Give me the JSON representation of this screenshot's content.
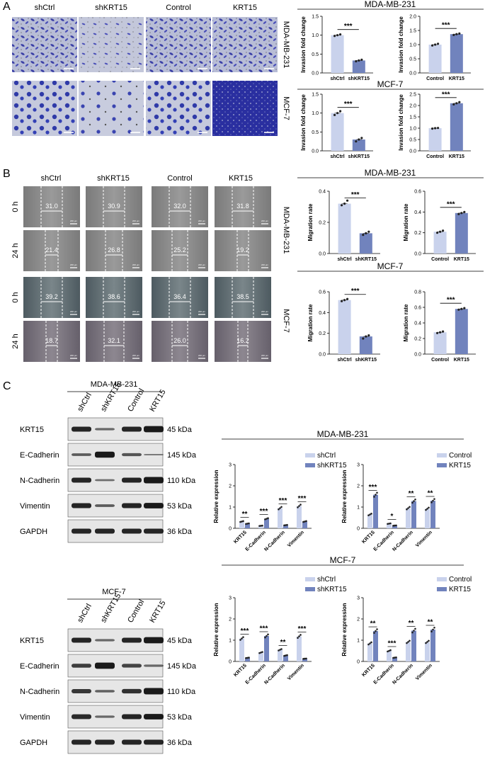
{
  "panelA": {
    "letter": "A",
    "columns": [
      "shCtrl",
      "shKRT15",
      "Control",
      "KRT15"
    ],
    "rows": [
      "MDA-MB-231",
      "MCF-7"
    ]
  },
  "panelB": {
    "letter": "B",
    "columns": [
      "shCtrl",
      "shKRT15",
      "Control",
      "KRT15"
    ],
    "cell_lines": [
      "MDA-MB-231",
      "MCF-7"
    ],
    "times": [
      "0 h",
      "24 h"
    ],
    "widths": {
      "mda_0h": [
        "31.0",
        "30.9",
        "32.0",
        "31.8"
      ],
      "mda_24h": [
        "21.4",
        "26.8",
        "25.2",
        "19.2"
      ],
      "mcf_0h": [
        "39.2",
        "38.6",
        "36.4",
        "38.5"
      ],
      "mcf_24h": [
        "18.7",
        "32.1",
        "26.0",
        "16.2"
      ]
    },
    "scalebar": "200 μm"
  },
  "panelC": {
    "letter": "C",
    "blots": [
      {
        "title": "MDA-MB-231",
        "lanes": [
          "shCtrl",
          "shKRT15",
          "Control",
          "KRT15"
        ],
        "proteins": [
          "KRT15",
          "E-Cadherin",
          "N-Cadherin",
          "Vimentin",
          "GAPDH"
        ],
        "kda": [
          "45 kDa",
          "145 kDa",
          "110 kDa",
          "53 kDa",
          "36 kDa"
        ]
      },
      {
        "title": "MCF-7",
        "lanes": [
          "shCtrl",
          "shKRT15",
          "Control",
          "KRT15"
        ],
        "proteins": [
          "KRT15",
          "E-Cadherin",
          "N-Cadherin",
          "Vimentin",
          "GAPDH"
        ],
        "kda": [
          "45 kDa",
          "145 kDa",
          "110 kDa",
          "53 kDa",
          "36 kDa"
        ]
      }
    ]
  },
  "colors": {
    "light": "#c9d2ec",
    "dark": "#7183bd",
    "blot_band": "#1a1a1a"
  },
  "chart_data": [
    {
      "id": "A_mda_kd",
      "type": "bar",
      "group_title": "MDA-MB-231",
      "categories": [
        "shCtrl",
        "shKRT15"
      ],
      "values": [
        1.0,
        0.33
      ],
      "points": [
        [
          0.98,
          1.0,
          1.02
        ],
        [
          0.31,
          0.33,
          0.35
        ]
      ],
      "ylabel": "Invasion fold change",
      "ylim": [
        0,
        1.5
      ],
      "yticks": [
        "0.0",
        "0.5",
        "1.0",
        "1.5"
      ],
      "sig": "***"
    },
    {
      "id": "A_mda_oe",
      "type": "bar",
      "categories": [
        "Control",
        "KRT15"
      ],
      "values": [
        1.0,
        1.37
      ],
      "points": [
        [
          0.97,
          1.0,
          1.03
        ],
        [
          1.34,
          1.37,
          1.39
        ]
      ],
      "ylabel": "Invasion fold change",
      "ylim": [
        0,
        2.0
      ],
      "yticks": [
        "0.0",
        "0.5",
        "1.0",
        "1.5",
        "2.0"
      ],
      "sig": "***"
    },
    {
      "id": "A_mcf_kd",
      "type": "bar",
      "group_title": "MCF-7",
      "categories": [
        "shCtrl",
        "shKRT15"
      ],
      "values": [
        1.0,
        0.3
      ],
      "points": [
        [
          0.95,
          1.0,
          1.05
        ],
        [
          0.25,
          0.3,
          0.34
        ]
      ],
      "ylabel": "Invasion fold change",
      "ylim": [
        0,
        1.5
      ],
      "yticks": [
        "0.0",
        "0.5",
        "1.0",
        "1.5"
      ],
      "sig": "***"
    },
    {
      "id": "A_mcf_oe",
      "type": "bar",
      "categories": [
        "Control",
        "KRT15"
      ],
      "values": [
        1.0,
        2.1
      ],
      "points": [
        [
          0.98,
          1.0,
          1.01
        ],
        [
          2.05,
          2.1,
          2.15
        ]
      ],
      "ylabel": "Invasion fold change",
      "ylim": [
        0,
        2.5
      ],
      "yticks": [
        "0.0",
        "0.5",
        "1.0",
        "1.5",
        "2.0",
        "2.5"
      ],
      "sig": "***"
    },
    {
      "id": "B_mda_kd",
      "type": "bar",
      "group_title": "MDA-MB-231",
      "categories": [
        "shCtrl",
        "shKRT15"
      ],
      "values": [
        0.32,
        0.13
      ],
      "points": [
        [
          0.31,
          0.32,
          0.34
        ],
        [
          0.12,
          0.13,
          0.14
        ]
      ],
      "ylabel": "Migration rate",
      "ylim": [
        0,
        0.4
      ],
      "yticks": [
        "0.0",
        "0.2",
        "0.4"
      ],
      "sig": "***"
    },
    {
      "id": "B_mda_oe",
      "type": "bar",
      "categories": [
        "Control",
        "KRT15"
      ],
      "values": [
        0.21,
        0.39
      ],
      "points": [
        [
          0.2,
          0.21,
          0.22
        ],
        [
          0.38,
          0.39,
          0.4
        ]
      ],
      "ylabel": "Migration rate",
      "ylim": [
        0,
        0.6
      ],
      "yticks": [
        "0.0",
        "0.2",
        "0.4",
        "0.6"
      ],
      "sig": "***"
    },
    {
      "id": "B_mcf_kd",
      "type": "bar",
      "group_title": "MCF-7",
      "categories": [
        "shCtrl",
        "shKRT15"
      ],
      "values": [
        0.52,
        0.17
      ],
      "points": [
        [
          0.51,
          0.52,
          0.53
        ],
        [
          0.15,
          0.17,
          0.18
        ]
      ],
      "ylabel": "Migration rate",
      "ylim": [
        0,
        0.6
      ],
      "yticks": [
        "0.0",
        "0.2",
        "0.4",
        "0.6"
      ],
      "sig": "***"
    },
    {
      "id": "B_mcf_oe",
      "type": "bar",
      "categories": [
        "Control",
        "KRT15"
      ],
      "values": [
        0.28,
        0.58
      ],
      "points": [
        [
          0.27,
          0.28,
          0.29
        ],
        [
          0.57,
          0.58,
          0.59
        ]
      ],
      "ylabel": "Migration rate",
      "ylim": [
        0,
        0.8
      ],
      "yticks": [
        "0.0",
        "0.2",
        "0.4",
        "0.6",
        "0.8"
      ],
      "sig": "***"
    },
    {
      "id": "C_mda_kd",
      "type": "grouped-bar",
      "group_title": "MDA-MB-231",
      "categories": [
        "KRT15",
        "E-Cadherin",
        "N-Cadherin",
        "Vimentin"
      ],
      "series": [
        {
          "name": "shCtrl",
          "values": [
            0.32,
            0.12,
            0.95,
            1.05
          ]
        },
        {
          "name": "shKRT15",
          "values": [
            0.22,
            0.45,
            0.15,
            0.32
          ]
        }
      ],
      "ylabel": "Relative expression",
      "ylim": [
        0,
        3
      ],
      "yticks": [
        "0",
        "1",
        "2",
        "3"
      ],
      "sig": [
        "**",
        "***",
        "***",
        "***"
      ]
    },
    {
      "id": "C_mda_oe",
      "type": "grouped-bar",
      "categories": [
        "KRT15",
        "E-Cadherin",
        "N-Cadherin",
        "Vimentin"
      ],
      "series": [
        {
          "name": "Control",
          "values": [
            0.65,
            0.22,
            0.95,
            0.92
          ]
        },
        {
          "name": "KRT15",
          "values": [
            1.58,
            0.13,
            1.28,
            1.3
          ]
        }
      ],
      "ylabel": "Relative expression",
      "ylim": [
        0,
        3
      ],
      "yticks": [
        "0",
        "1",
        "2",
        "3"
      ],
      "sig": [
        "***",
        "*",
        "**",
        "**"
      ]
    },
    {
      "id": "C_mcf_kd",
      "type": "grouped-bar",
      "group_title": "MCF-7",
      "categories": [
        "KRT15",
        "E-Cadherin",
        "N-Cadherin",
        "Vimentin"
      ],
      "series": [
        {
          "name": "shCtrl",
          "values": [
            1.08,
            0.42,
            0.55,
            1.18
          ]
        },
        {
          "name": "shKRT15",
          "values": [
            0.17,
            1.2,
            0.28,
            0.13
          ]
        }
      ],
      "ylabel": "Relative expression",
      "ylim": [
        0,
        3
      ],
      "yticks": [
        "0",
        "1",
        "2",
        "3"
      ],
      "sig": [
        "***",
        "***",
        "**",
        "***"
      ]
    },
    {
      "id": "C_mcf_oe",
      "type": "grouped-bar",
      "categories": [
        "KRT15",
        "E-Cadherin",
        "N-Cadherin",
        "Vimentin"
      ],
      "series": [
        {
          "name": "Control",
          "values": [
            0.85,
            0.5,
            0.92,
            0.92
          ]
        },
        {
          "name": "KRT15",
          "values": [
            1.43,
            0.18,
            1.45,
            1.5
          ]
        }
      ],
      "ylabel": "Relative expression",
      "ylim": [
        0,
        3
      ],
      "yticks": [
        "0",
        "1",
        "2",
        "3"
      ],
      "sig": [
        "**",
        "***",
        "**",
        "**"
      ]
    }
  ]
}
